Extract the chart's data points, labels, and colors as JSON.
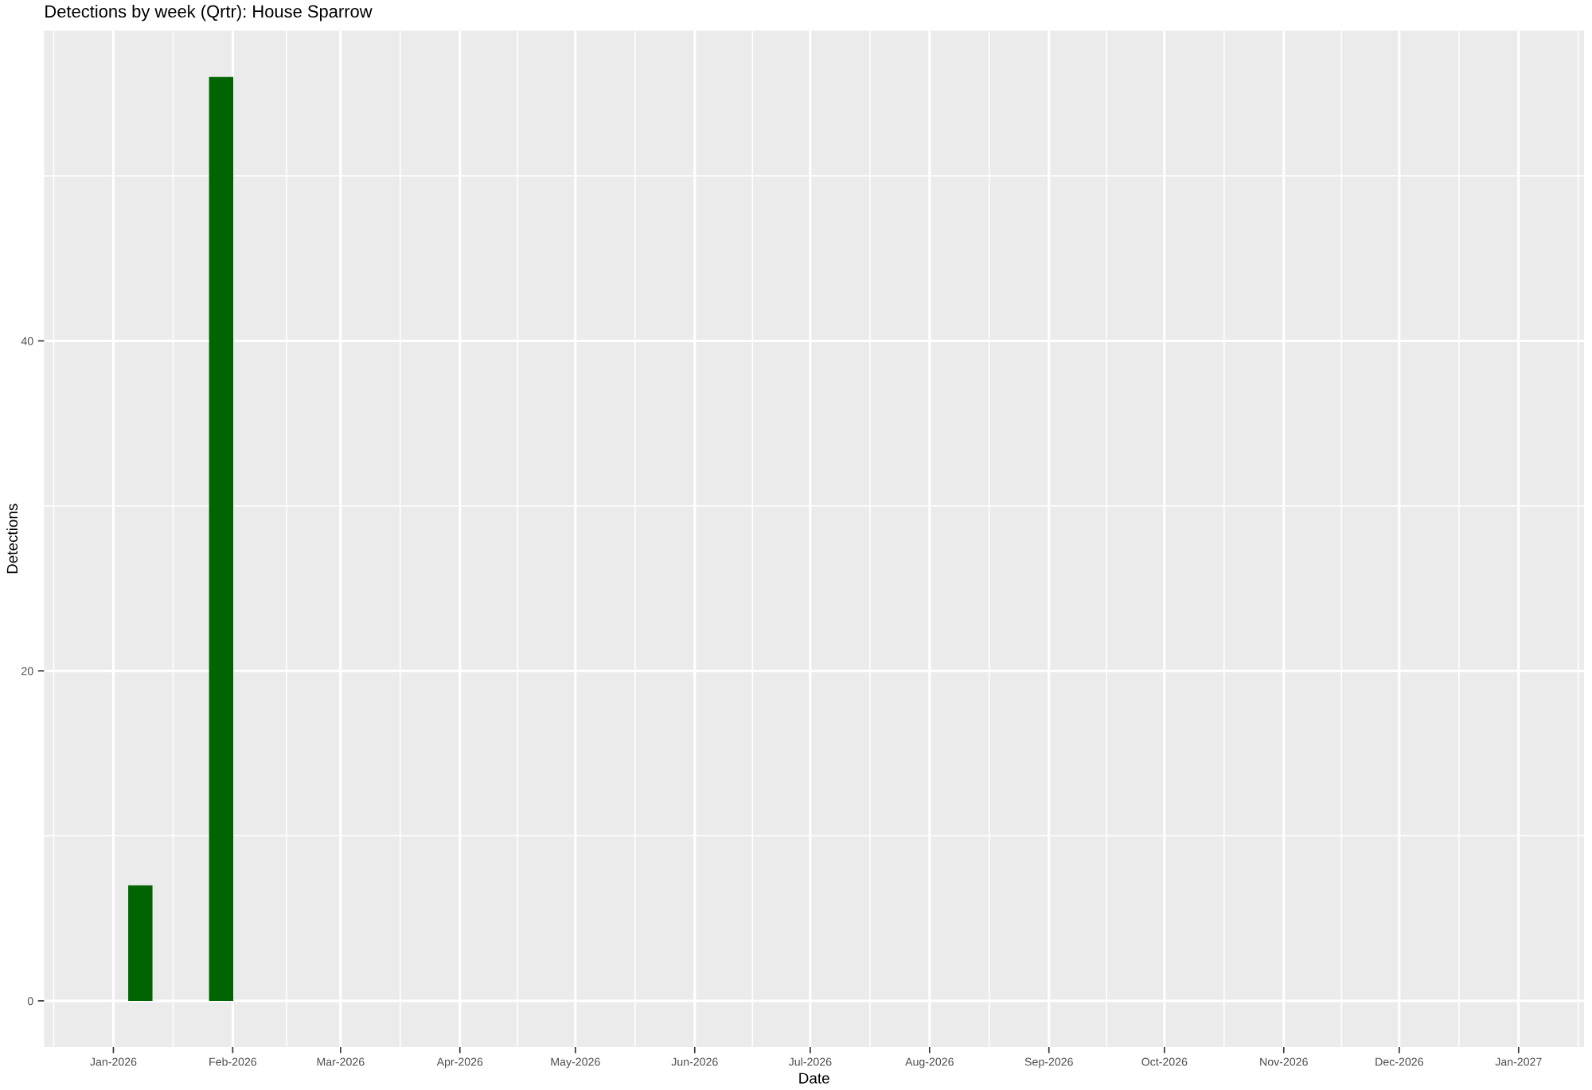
{
  "chart_data": {
    "type": "bar",
    "title": "Detections by week (Qrtr): House Sparrow",
    "xlabel": "Date",
    "ylabel": "Detections",
    "x": [
      "2026-01-08",
      "2026-01-29"
    ],
    "values": [
      7,
      56
    ],
    "color": "#006400",
    "xlim": [
      "2025-12-14",
      "2027-01-18"
    ],
    "xticks": [
      {
        "value": "2026-01-01",
        "label": "Jan-2026"
      },
      {
        "value": "2026-02-01",
        "label": "Feb-2026"
      },
      {
        "value": "2026-03-01",
        "label": "Mar-2026"
      },
      {
        "value": "2026-04-01",
        "label": "Apr-2026"
      },
      {
        "value": "2026-05-01",
        "label": "May-2026"
      },
      {
        "value": "2026-06-01",
        "label": "Jun-2026"
      },
      {
        "value": "2026-07-01",
        "label": "Jul-2026"
      },
      {
        "value": "2026-08-01",
        "label": "Aug-2026"
      },
      {
        "value": "2026-09-01",
        "label": "Sep-2026"
      },
      {
        "value": "2026-10-01",
        "label": "Oct-2026"
      },
      {
        "value": "2026-11-01",
        "label": "Nov-2026"
      },
      {
        "value": "2026-12-01",
        "label": "Dec-2026"
      },
      {
        "value": "2027-01-01",
        "label": "Jan-2027"
      }
    ],
    "ylim": [
      -2.8,
      58.8
    ],
    "yticks": [
      0,
      20,
      40
    ],
    "grid": true
  }
}
